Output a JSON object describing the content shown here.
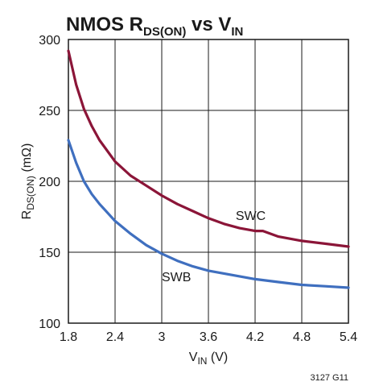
{
  "chart_data": {
    "type": "line",
    "title": {
      "parts": [
        {
          "text": "NMOS R",
          "sub": false
        },
        {
          "text": "DS(ON)",
          "sub": true
        },
        {
          "text": " vs V",
          "sub": false
        },
        {
          "text": "IN",
          "sub": true
        }
      ]
    },
    "xlabel": {
      "parts": [
        {
          "text": "V",
          "sub": false
        },
        {
          "text": "IN",
          "sub": true
        },
        {
          "text": " (V)",
          "sub": false
        }
      ]
    },
    "ylabel": {
      "parts": [
        {
          "text": "R",
          "sub": false
        },
        {
          "text": "DS(ON)",
          "sub": true
        },
        {
          "text": " (mΩ)",
          "sub": false
        }
      ]
    },
    "xlim": [
      1.8,
      5.4
    ],
    "ylim": [
      100,
      300
    ],
    "x_ticks": [
      1.8,
      2.4,
      3,
      3.6,
      4.2,
      4.8,
      5.4
    ],
    "x_tick_labels": [
      "1.8",
      "2.4",
      "3",
      "3.6",
      "4.2",
      "4.8",
      "5.4"
    ],
    "y_ticks": [
      100,
      150,
      200,
      250,
      300
    ],
    "y_tick_labels": [
      "100",
      "150",
      "200",
      "250",
      "300"
    ],
    "grid": true,
    "series": [
      {
        "name": "SWC",
        "color": "#8b1538",
        "x": [
          1.8,
          1.9,
          2.0,
          2.1,
          2.2,
          2.4,
          2.6,
          2.8,
          3.0,
          3.2,
          3.4,
          3.6,
          3.8,
          4.0,
          4.2,
          4.3,
          4.5,
          4.8,
          5.1,
          5.4
        ],
        "y": [
          292,
          268,
          251,
          239,
          229,
          214,
          204,
          197,
          190,
          184,
          179,
          174,
          170,
          167,
          165,
          165,
          161,
          158,
          156,
          154
        ]
      },
      {
        "name": "SWB",
        "color": "#3f6fbf",
        "x": [
          1.8,
          1.9,
          2.0,
          2.1,
          2.2,
          2.4,
          2.6,
          2.8,
          3.0,
          3.2,
          3.4,
          3.6,
          3.8,
          4.0,
          4.2,
          4.5,
          4.8,
          5.1,
          5.4
        ],
        "y": [
          229,
          213,
          200,
          191,
          184,
          172,
          163,
          155,
          149,
          144,
          140,
          137,
          135,
          133,
          131,
          129,
          127,
          126,
          125
        ]
      }
    ],
    "figure_id": "3127 G11"
  }
}
